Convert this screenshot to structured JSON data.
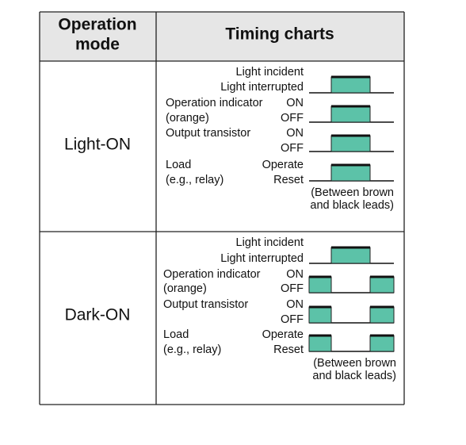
{
  "header": {
    "mode": [
      "Operation",
      "mode"
    ],
    "timing": "Timing charts"
  },
  "rows": [
    {
      "mode": "Light-ON",
      "signals": [
        {
          "states": [
            "Light incident",
            "Light interrupted"
          ]
        },
        {
          "name": [
            "Operation indicator",
            "(orange)"
          ],
          "states": [
            "ON",
            "OFF"
          ]
        },
        {
          "name": [
            "Output transistor"
          ],
          "states": [
            "ON",
            "OFF"
          ]
        },
        {
          "name": [
            "Load",
            "(e.g., relay)"
          ],
          "states": [
            "Operate",
            "Reset"
          ]
        }
      ],
      "note": [
        "(Between brown",
        "and black leads)"
      ]
    },
    {
      "mode": "Dark-ON",
      "signals": [
        {
          "states": [
            "Light incident",
            "Light interrupted"
          ]
        },
        {
          "name": [
            "Operation indicator",
            "(orange)"
          ],
          "states": [
            "ON",
            "OFF"
          ]
        },
        {
          "name": [
            "Output transistor"
          ],
          "states": [
            "ON",
            "OFF"
          ]
        },
        {
          "name": [
            "Load",
            "(e.g., relay)"
          ],
          "states": [
            "Operate",
            "Reset"
          ]
        }
      ],
      "note": [
        "(Between brown",
        "and black leads)"
      ]
    }
  ]
}
